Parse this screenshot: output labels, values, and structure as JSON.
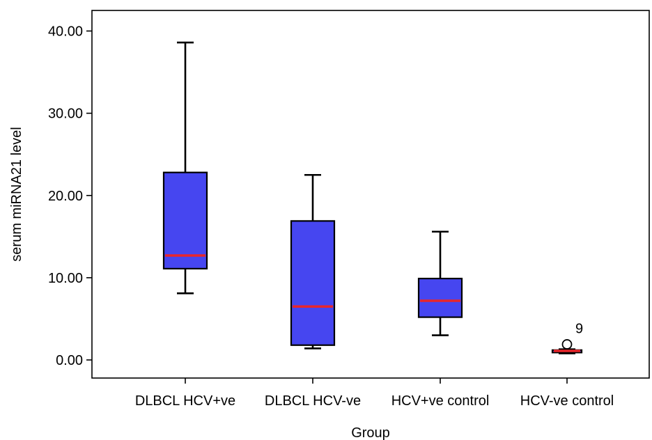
{
  "chart_data": {
    "type": "box",
    "xlabel": "Group",
    "ylabel": "serum miRNA21 level",
    "ylim": [
      -2.2,
      42.5
    ],
    "yticks": [
      0,
      10,
      20,
      30,
      40
    ],
    "ytick_labels": [
      "0.00",
      "10.00",
      "20.00",
      "30.00",
      "40.00"
    ],
    "grid": false,
    "colors": {
      "box_fill": "#4646f0",
      "median": "#e8262b",
      "whisker": "#000000"
    },
    "categories": [
      "DLBCL HCV+ve",
      "DLBCL HCV-ve",
      "HCV+ve control",
      "HCV-ve control"
    ],
    "boxes": [
      {
        "min": 8.1,
        "q1": 11.1,
        "median": 12.7,
        "q3": 22.8,
        "max": 38.6,
        "outliers": []
      },
      {
        "min": 1.4,
        "q1": 1.8,
        "median": 6.5,
        "q3": 16.9,
        "max": 22.5,
        "outliers": []
      },
      {
        "min": 3.0,
        "q1": 5.2,
        "median": 7.2,
        "q3": 9.9,
        "max": 15.6,
        "outliers": []
      },
      {
        "min": 0.8,
        "q1": 0.9,
        "median": 1.1,
        "q3": 1.2,
        "max": 1.3,
        "outliers": [
          {
            "value": 1.9,
            "label": "9"
          }
        ]
      }
    ]
  }
}
